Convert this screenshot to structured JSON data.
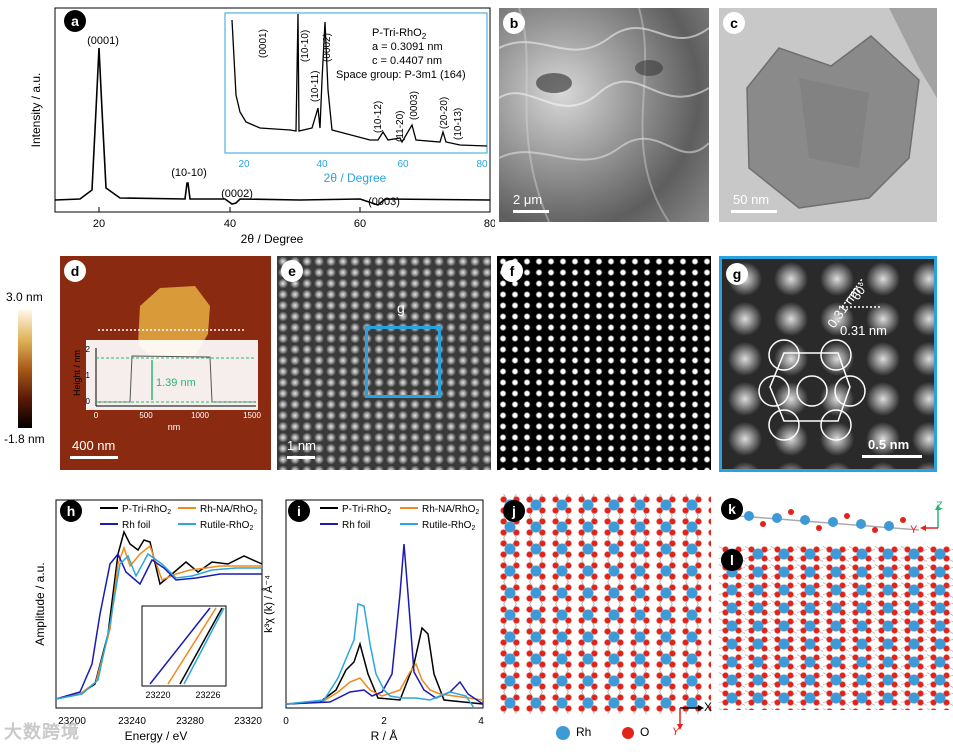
{
  "panels": {
    "a": {
      "label": "a",
      "ylabel": "Intensity / a.u.",
      "xlabel": "2θ / Degree",
      "xticks": [
        "20",
        "40",
        "60",
        "80"
      ],
      "peaks": [
        "(0001)",
        "(10-10)",
        "(0002)",
        "(0003)"
      ],
      "inset": {
        "title": "P-Tri-RhO",
        "title_sub": "2",
        "a": "a = 0.3091 nm",
        "c": "c = 0.4407 nm",
        "space_group": "Space group: P-3m1 (164)",
        "xlabel": "2θ / Degree",
        "xticks": [
          "20",
          "40",
          "60",
          "80"
        ],
        "peaks": [
          "(0001)",
          "(10-10)",
          "(10-11)",
          "(0002)",
          "(10-12)",
          "(11-20)",
          "(0003)",
          "(20-20)",
          "(10-13)"
        ]
      }
    },
    "b": {
      "label": "b",
      "scale": "2 μm"
    },
    "c": {
      "label": "c",
      "scale": "50 nm"
    },
    "d": {
      "label": "d",
      "cbar_top": "3.0 nm",
      "cbar_bottom": "-1.8 nm",
      "scale": "400 nm",
      "inset_ylabel": "Height / nm",
      "inset_xlabel": "nm",
      "inset_yticks": [
        "2",
        "1",
        "0"
      ],
      "inset_xticks": [
        "0",
        "500",
        "1000",
        "1500"
      ],
      "thickness": "1.39 nm"
    },
    "e": {
      "label": "e",
      "scale": "1 nm",
      "box_label": "g"
    },
    "f": {
      "label": "f"
    },
    "g": {
      "label": "g",
      "d1": "0.31 nm",
      "d2": "0.31 nm",
      "angle": "60°",
      "scale": "0.5 nm"
    },
    "h": {
      "label": "h",
      "ylabel": "Amplitude / a.u.",
      "xlabel": "Energy / eV",
      "xticks": [
        "23200",
        "23240",
        "23280",
        "23320"
      ],
      "inset_xticks": [
        "23220",
        "23226"
      ],
      "legend": [
        "P-Tri-RhO2",
        "Rh-NA/RhO2",
        "Rh foil",
        "Rutile-RhO2"
      ]
    },
    "i": {
      "label": "i",
      "ylabel": "k³χ (k) / Å⁻⁴",
      "xlabel": "R / Å",
      "xticks": [
        "0",
        "2",
        "4"
      ],
      "legend": [
        "P-Tri-RhO2",
        "Rh-NA/RhO2",
        "Rh foil",
        "Rutile-RhO2"
      ]
    },
    "j": {
      "label": "j",
      "axis_x": "X",
      "axis_y": "Y",
      "legend_rh": "Rh",
      "legend_o": "O"
    },
    "k": {
      "label": "k",
      "axis_z": "Z",
      "axis_y": "Y"
    },
    "l": {
      "label": "l"
    }
  },
  "colors": {
    "black": "#000000",
    "orange": "#f08a1c",
    "navy": "#1a1ab4",
    "cyan": "#2aa7dc",
    "rh_atom": "#3d9ad6",
    "o_atom": "#e2231a",
    "panel_frame": "#29a3df"
  },
  "watermark": "大数跨境"
}
